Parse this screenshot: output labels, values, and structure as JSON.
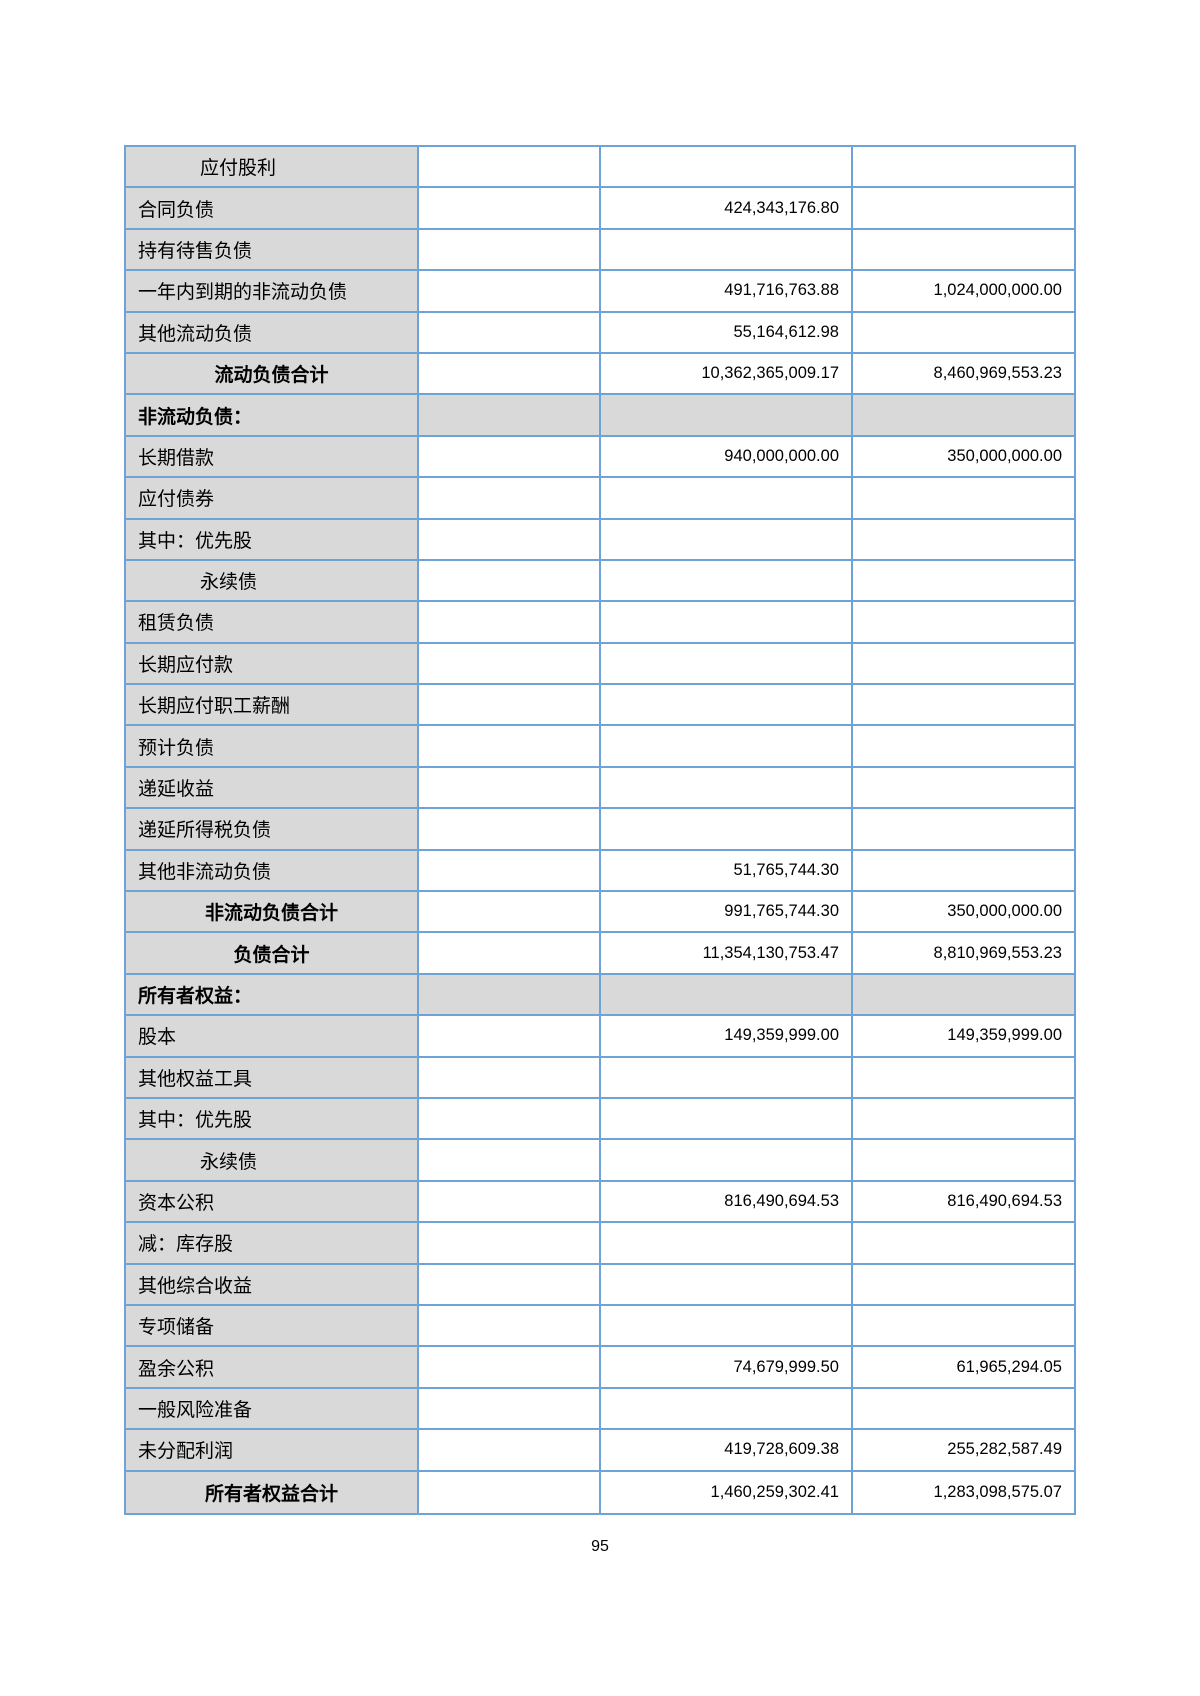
{
  "document": {
    "page_number": "95",
    "colors": {
      "table_border": "#6FA3D6",
      "shaded_cell": "#D9D9D9",
      "text": "#000000"
    },
    "table": {
      "columns": [
        "item",
        "note",
        "current_period",
        "prior_period"
      ],
      "rows": [
        {
          "label": "应付股利",
          "style": "sub",
          "note": "",
          "current": "",
          "prior": ""
        },
        {
          "label": "合同负债",
          "style": "item",
          "note": "",
          "current": "424,343,176.80",
          "prior": ""
        },
        {
          "label": "持有待售负债",
          "style": "item",
          "note": "",
          "current": "",
          "prior": ""
        },
        {
          "label": "一年内到期的非流动负债",
          "style": "item",
          "note": "",
          "current": "491,716,763.88",
          "prior": "1,024,000,000.00"
        },
        {
          "label": "其他流动负债",
          "style": "item",
          "note": "",
          "current": "55,164,612.98",
          "prior": ""
        },
        {
          "label": "流动负债合计",
          "style": "total",
          "note": "",
          "current": "10,362,365,009.17",
          "prior": "8,460,969,553.23"
        },
        {
          "label": "非流动负债：",
          "style": "section",
          "note": "",
          "current": "",
          "prior": ""
        },
        {
          "label": "长期借款",
          "style": "item",
          "note": "",
          "current": "940,000,000.00",
          "prior": "350,000,000.00"
        },
        {
          "label": "应付债券",
          "style": "item",
          "note": "",
          "current": "",
          "prior": ""
        },
        {
          "label": "其中：优先股",
          "style": "item",
          "note": "",
          "current": "",
          "prior": ""
        },
        {
          "label": "永续债",
          "style": "sub",
          "note": "",
          "current": "",
          "prior": ""
        },
        {
          "label": "租赁负债",
          "style": "item",
          "note": "",
          "current": "",
          "prior": ""
        },
        {
          "label": "长期应付款",
          "style": "item",
          "note": "",
          "current": "",
          "prior": ""
        },
        {
          "label": "长期应付职工薪酬",
          "style": "item",
          "note": "",
          "current": "",
          "prior": ""
        },
        {
          "label": "预计负债",
          "style": "item",
          "note": "",
          "current": "",
          "prior": ""
        },
        {
          "label": "递延收益",
          "style": "item",
          "note": "",
          "current": "",
          "prior": ""
        },
        {
          "label": "递延所得税负债",
          "style": "item",
          "note": "",
          "current": "",
          "prior": ""
        },
        {
          "label": "其他非流动负债",
          "style": "item",
          "note": "",
          "current": "51,765,744.30",
          "prior": ""
        },
        {
          "label": "非流动负债合计",
          "style": "total",
          "note": "",
          "current": "991,765,744.30",
          "prior": "350,000,000.00"
        },
        {
          "label": "负债合计",
          "style": "total",
          "note": "",
          "current": "11,354,130,753.47",
          "prior": "8,810,969,553.23"
        },
        {
          "label": "所有者权益：",
          "style": "section",
          "note": "",
          "current": "",
          "prior": ""
        },
        {
          "label": "股本",
          "style": "item",
          "note": "",
          "current": "149,359,999.00",
          "prior": "149,359,999.00"
        },
        {
          "label": "其他权益工具",
          "style": "item",
          "note": "",
          "current": "",
          "prior": ""
        },
        {
          "label": "其中：优先股",
          "style": "item",
          "note": "",
          "current": "",
          "prior": ""
        },
        {
          "label": "永续债",
          "style": "sub",
          "note": "",
          "current": "",
          "prior": ""
        },
        {
          "label": "资本公积",
          "style": "item",
          "note": "",
          "current": "816,490,694.53",
          "prior": "816,490,694.53"
        },
        {
          "label": "减：库存股",
          "style": "item",
          "note": "",
          "current": "",
          "prior": ""
        },
        {
          "label": "其他综合收益",
          "style": "item",
          "note": "",
          "current": "",
          "prior": ""
        },
        {
          "label": "专项储备",
          "style": "item",
          "note": "",
          "current": "",
          "prior": ""
        },
        {
          "label": "盈余公积",
          "style": "item",
          "note": "",
          "current": "74,679,999.50",
          "prior": "61,965,294.05"
        },
        {
          "label": "一般风险准备",
          "style": "item",
          "note": "",
          "current": "",
          "prior": ""
        },
        {
          "label": "未分配利润",
          "style": "item",
          "note": "",
          "current": "419,728,609.38",
          "prior": "255,282,587.49"
        },
        {
          "label": "所有者权益合计",
          "style": "total",
          "note": "",
          "current": "1,460,259,302.41",
          "prior": "1,283,098,575.07"
        }
      ]
    }
  }
}
